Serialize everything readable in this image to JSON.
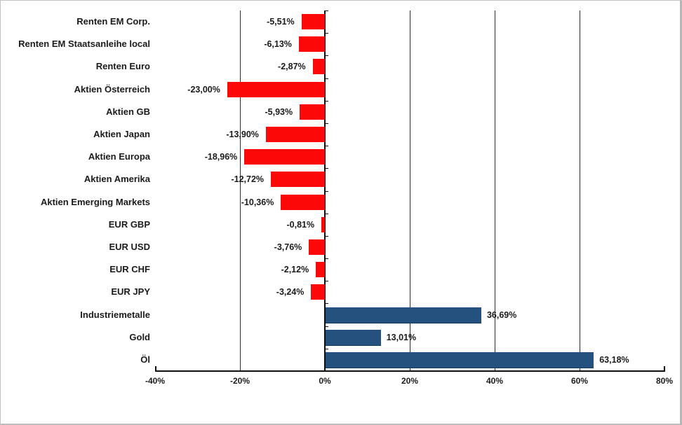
{
  "chart_data": {
    "type": "bar",
    "orientation": "horizontal",
    "title": "",
    "xlabel": "",
    "ylabel": "",
    "xlim": [
      -40,
      80
    ],
    "grid": true,
    "legend": false,
    "categories": [
      "Renten EM Corp.",
      "Renten EM Staatsanleihe local",
      "Renten Euro",
      "Aktien Österreich",
      "Aktien GB",
      "Aktien Japan",
      "Aktien Europa",
      "Aktien Amerika",
      "Aktien Emerging Markets",
      "EUR GBP",
      "EUR USD",
      "EUR CHF",
      "EUR JPY",
      "Industriemetalle",
      "Gold",
      "Öl"
    ],
    "values": [
      -5.51,
      -6.13,
      -2.87,
      -23.0,
      -5.93,
      -13.9,
      -18.96,
      -12.72,
      -10.36,
      -0.81,
      -3.76,
      -2.12,
      -3.24,
      36.69,
      13.01,
      63.18
    ],
    "value_labels": [
      "-5,51%",
      "-6,13%",
      "-2,87%",
      "-23,00%",
      "-5,93%",
      "-13,90%",
      "-18,96%",
      "-12,72%",
      "-10,36%",
      "-0,81%",
      "-3,76%",
      "-2,12%",
      "-3,24%",
      "36,69%",
      "13,01%",
      "63,18%"
    ],
    "x_tick_values": [
      -40,
      -20,
      0,
      20,
      40,
      60,
      80
    ],
    "x_tick_labels": [
      "-40%",
      "-20%",
      "0%",
      "20%",
      "40%",
      "60%",
      "80%"
    ],
    "gridlines_at": [
      -20,
      20,
      40,
      60
    ],
    "colors": {
      "negative_bar": "#fc0808",
      "positive_bar": "#24517e",
      "axis": "#0e0e0e",
      "gridline": "#2b2b2b",
      "text": "#1b1b1b",
      "background": "#ffffff",
      "frame_border": "#b5b5b5"
    }
  }
}
